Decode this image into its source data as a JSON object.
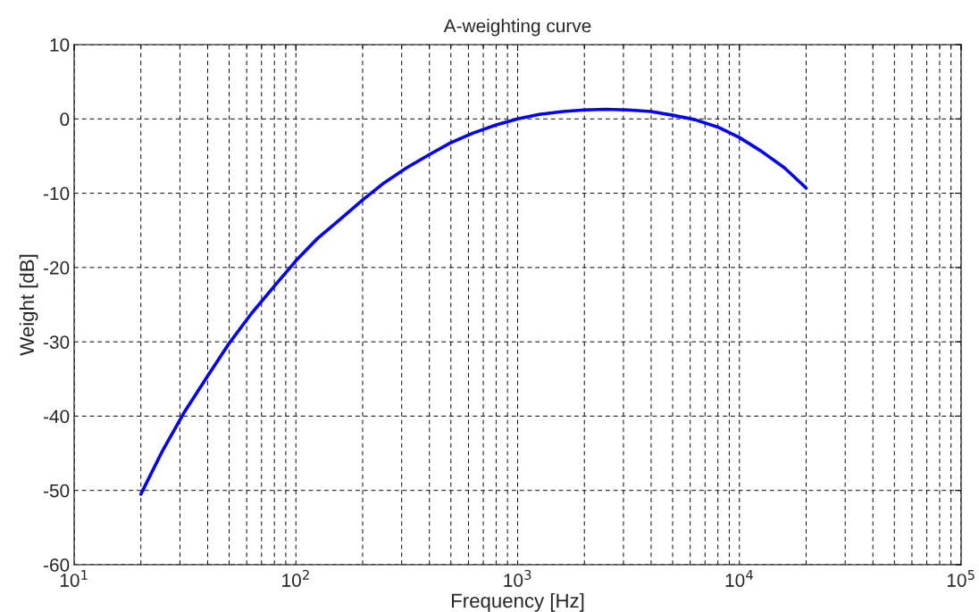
{
  "chart_data": {
    "type": "line",
    "title": "A-weighting curve",
    "xlabel": "Frequency [Hz]",
    "ylabel": "Weight [dB]",
    "x": [
      20,
      25,
      31.5,
      40,
      50,
      63,
      80,
      100,
      125,
      160,
      200,
      250,
      315,
      400,
      500,
      630,
      800,
      1000,
      1250,
      1600,
      2000,
      2500,
      3150,
      4000,
      5000,
      6300,
      8000,
      10000,
      12500,
      16000,
      20000
    ],
    "series": [
      {
        "color": "#0000ff",
        "values": [
          -50.5,
          -44.7,
          -39.4,
          -34.6,
          -30.2,
          -26.2,
          -22.5,
          -19.1,
          -16.1,
          -13.4,
          -10.9,
          -8.6,
          -6.6,
          -4.8,
          -3.2,
          -1.9,
          -0.8,
          0,
          0.6,
          1.0,
          1.2,
          1.3,
          1.2,
          1.0,
          0.5,
          -0.1,
          -1.1,
          -2.5,
          -4.3,
          -6.6,
          -9.3
        ]
      }
    ],
    "log": "x",
    "xlim": [
      10,
      100000
    ],
    "xticks": [
      {
        "value": 10,
        "label": "10$^{1}$"
      },
      {
        "value": 100,
        "label": "10$^{2}$"
      },
      {
        "value": 1000,
        "label": "10$^{3}$"
      },
      {
        "value": 10000,
        "label": "10$^{4}$"
      },
      {
        "value": 100000,
        "label": "10$^{5}$"
      }
    ],
    "ylim": [
      -60,
      10
    ],
    "yticks": [
      -60,
      -50,
      -40,
      -30,
      -20,
      -10,
      0,
      10
    ],
    "grid": true,
    "line_style": "solid",
    "marker": "none"
  }
}
